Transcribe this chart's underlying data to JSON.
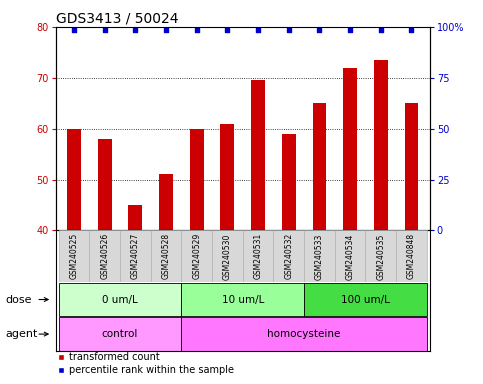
{
  "title": "GDS3413 / 50024",
  "samples": [
    "GSM240525",
    "GSM240526",
    "GSM240527",
    "GSM240528",
    "GSM240529",
    "GSM240530",
    "GSM240531",
    "GSM240532",
    "GSM240533",
    "GSM240534",
    "GSM240535",
    "GSM240848"
  ],
  "bar_values": [
    60,
    58,
    45,
    51,
    60,
    61,
    69.5,
    59,
    65,
    72,
    73.5,
    65
  ],
  "percentile_values": [
    100,
    100,
    100,
    100,
    100,
    100,
    100,
    100,
    100,
    100,
    100,
    100
  ],
  "bar_color": "#cc0000",
  "percentile_color": "#0000cc",
  "ylim_left": [
    40,
    80
  ],
  "ylim_right": [
    0,
    100
  ],
  "yticks_left": [
    40,
    50,
    60,
    70,
    80
  ],
  "yticks_right": [
    0,
    25,
    50,
    75,
    100
  ],
  "yticklabels_right": [
    "0",
    "25",
    "50",
    "75",
    "100%"
  ],
  "grid_yticks": [
    50,
    60,
    70
  ],
  "dose_groups": [
    {
      "label": "0 um/L",
      "start": 0,
      "end": 3,
      "color": "#ccffcc"
    },
    {
      "label": "10 um/L",
      "start": 4,
      "end": 7,
      "color": "#99ff99"
    },
    {
      "label": "100 um/L",
      "start": 8,
      "end": 11,
      "color": "#44dd44"
    }
  ],
  "agent_groups": [
    {
      "label": "control",
      "start": 0,
      "end": 3,
      "color": "#ff99ff"
    },
    {
      "label": "homocysteine",
      "start": 4,
      "end": 11,
      "color": "#ff77ff"
    }
  ],
  "dose_label": "dose",
  "agent_label": "agent",
  "legend_bar_label": "transformed count",
  "legend_pct_label": "percentile rank within the sample",
  "title_fontsize": 10,
  "tick_fontsize": 7,
  "bar_width": 0.45
}
